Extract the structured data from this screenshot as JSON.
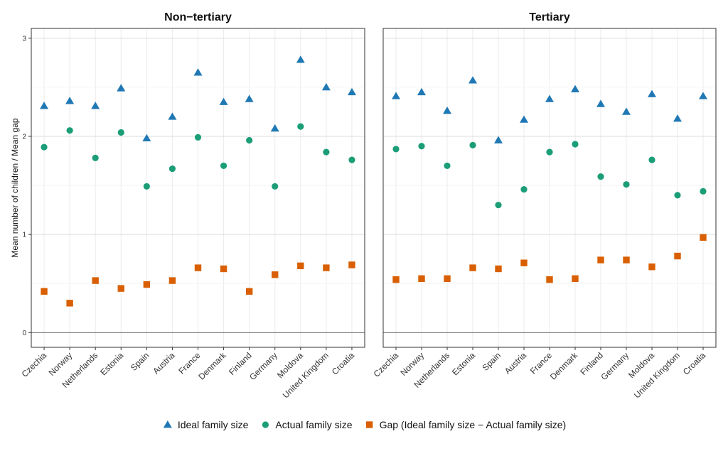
{
  "chart_data": {
    "type": "scatter",
    "ylabel": "Mean number of children / Mean gap",
    "ylim": [
      -0.15,
      3.1
    ],
    "yticks": [
      0,
      1,
      2,
      3
    ],
    "categories": [
      "Czechia",
      "Norway",
      "Netherlands",
      "Estonia",
      "Spain",
      "Austria",
      "France",
      "Denmark",
      "Finland",
      "Germany",
      "Moldova",
      "United Kingdom",
      "Croatia"
    ],
    "legend_position": "bottom",
    "grid": true,
    "series_styles": [
      {
        "key": "ideal",
        "name": "Ideal family size",
        "marker": "triangle",
        "color": "#1f78b4"
      },
      {
        "key": "actual",
        "name": "Actual family size",
        "marker": "circle",
        "color": "#1b9e77"
      },
      {
        "key": "gap",
        "name": "Gap (Ideal family size − Actual family size)",
        "marker": "square",
        "color": "#d95f02"
      }
    ],
    "panels": [
      {
        "title": "Non−tertiary",
        "ideal": [
          2.31,
          2.36,
          2.31,
          2.49,
          1.98,
          2.2,
          2.65,
          2.35,
          2.38,
          2.08,
          2.78,
          2.5,
          2.45
        ],
        "actual": [
          1.89,
          2.06,
          1.78,
          2.04,
          1.49,
          1.67,
          1.99,
          1.7,
          1.96,
          1.49,
          2.1,
          1.84,
          1.76
        ],
        "gap": [
          0.42,
          0.3,
          0.53,
          0.45,
          0.49,
          0.53,
          0.66,
          0.65,
          0.42,
          0.59,
          0.68,
          0.66,
          0.69
        ]
      },
      {
        "title": "Tertiary",
        "ideal": [
          2.41,
          2.45,
          2.26,
          2.57,
          1.96,
          2.17,
          2.38,
          2.48,
          2.33,
          2.25,
          2.43,
          2.18,
          2.41
        ],
        "actual": [
          1.87,
          1.9,
          1.7,
          1.91,
          1.3,
          1.46,
          1.84,
          1.92,
          1.59,
          1.51,
          1.76,
          1.4,
          1.44
        ],
        "gap": [
          0.54,
          0.55,
          0.55,
          0.66,
          0.65,
          0.71,
          0.54,
          0.55,
          0.74,
          0.74,
          0.67,
          0.78,
          0.97
        ]
      }
    ]
  }
}
